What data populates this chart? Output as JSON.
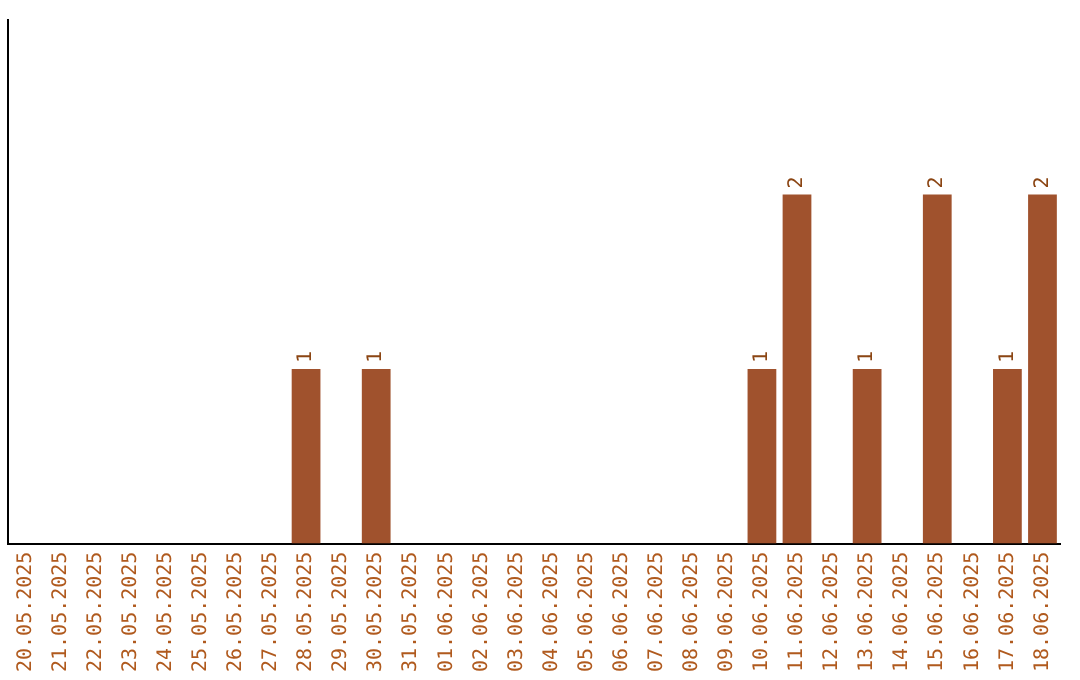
{
  "chart_data": {
    "type": "bar",
    "categories": [
      "20.05.2025",
      "21.05.2025",
      "22.05.2025",
      "23.05.2025",
      "24.05.2025",
      "25.05.2025",
      "26.05.2025",
      "27.05.2025",
      "28.05.2025",
      "29.05.2025",
      "30.05.2025",
      "31.05.2025",
      "01.06.2025",
      "02.06.2025",
      "03.06.2025",
      "04.06.2025",
      "05.06.2025",
      "06.06.2025",
      "07.06.2025",
      "08.06.2025",
      "09.06.2025",
      "10.06.2025",
      "11.06.2025",
      "12.06.2025",
      "13.06.2025",
      "14.06.2025",
      "15.06.2025",
      "16.06.2025",
      "17.06.2025",
      "18.06.2025"
    ],
    "values": [
      0,
      0,
      0,
      0,
      0,
      0,
      0,
      0,
      1,
      0,
      1,
      0,
      0,
      0,
      0,
      0,
      0,
      0,
      0,
      0,
      0,
      1,
      2,
      0,
      1,
      0,
      2,
      0,
      1,
      2
    ],
    "value_labels": [
      null,
      null,
      null,
      null,
      null,
      null,
      null,
      null,
      "1",
      null,
      "1",
      null,
      null,
      null,
      null,
      null,
      null,
      null,
      null,
      null,
      null,
      "1",
      "2",
      null,
      "1",
      null,
      "2",
      null,
      "1",
      "2"
    ],
    "color": "#a0522d",
    "grid": false,
    "legend": false,
    "tick_labels": "x"
  }
}
